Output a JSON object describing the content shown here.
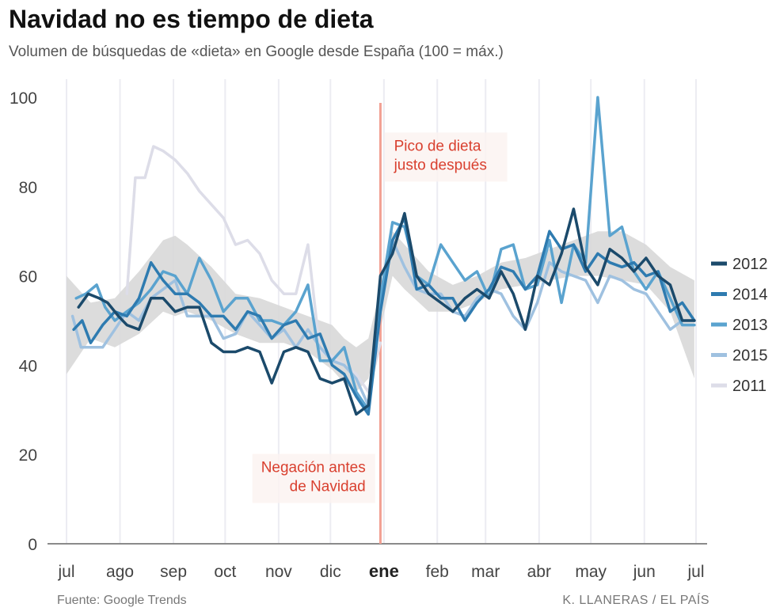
{
  "chart_data": {
    "type": "line",
    "title": "Navidad no es tiempo de dieta",
    "subtitle": "Volumen de búsquedas de «dieta» en Google desde España (100 = máx.)",
    "x_unit": "weeks from July 1 (0 = start of jul, 26 = ene, 52 = next jul)",
    "x_ticks": [
      {
        "x": 0,
        "label": "jul"
      },
      {
        "x": 4.43,
        "label": "ago"
      },
      {
        "x": 8.86,
        "label": "sep"
      },
      {
        "x": 13.14,
        "label": "oct"
      },
      {
        "x": 17.57,
        "label": "nov"
      },
      {
        "x": 21.86,
        "label": "dic"
      },
      {
        "x": 26.29,
        "label": "ene",
        "bold": true
      },
      {
        "x": 30.71,
        "label": "feb"
      },
      {
        "x": 34.71,
        "label": "mar"
      },
      {
        "x": 39.14,
        "label": "abr"
      },
      {
        "x": 43.43,
        "label": "may"
      },
      {
        "x": 47.86,
        "label": "jun"
      },
      {
        "x": 52.14,
        "label": "jul"
      }
    ],
    "y_ticks": [
      0,
      20,
      40,
      60,
      80,
      100
    ],
    "ylim": [
      0,
      100
    ],
    "xlim": [
      0,
      52.14
    ],
    "series": [
      {
        "name": "2011",
        "color": "#dddde8",
        "width": 3.5,
        "x": [
          5,
          5.7,
          6.5,
          7.2,
          8,
          9,
          10,
          11,
          12,
          13,
          14,
          15,
          16,
          17,
          18,
          19,
          20,
          21,
          22,
          23,
          24,
          25,
          26
        ],
        "y": [
          56,
          82,
          82,
          89,
          88,
          86,
          83,
          79,
          76,
          73,
          67,
          68,
          65,
          59,
          56,
          56,
          67,
          43,
          42,
          40,
          38,
          34,
          45
        ]
      },
      {
        "name": "2015",
        "color": "#9fc1e0",
        "width": 3.5,
        "x": [
          0.5,
          1.2,
          2,
          3,
          4,
          5,
          6,
          7,
          8,
          9,
          10,
          11,
          12,
          13,
          14,
          15,
          16,
          17,
          18,
          19,
          20,
          21,
          22,
          23,
          24,
          25,
          26,
          27,
          28,
          29,
          30,
          31,
          32,
          33,
          34,
          35,
          36,
          37,
          38,
          39,
          40,
          41,
          42,
          43,
          44,
          45,
          46,
          47,
          48,
          49,
          50,
          51,
          52
        ],
        "y": [
          51,
          44,
          44,
          44,
          48,
          52,
          50,
          55,
          57,
          59,
          51,
          51,
          51,
          46,
          47,
          52,
          49,
          46,
          48,
          44,
          48,
          44,
          41,
          40,
          37,
          31,
          56,
          68,
          62,
          57,
          56,
          56,
          52,
          51,
          55,
          57,
          56,
          51,
          48,
          54,
          63,
          61,
          60,
          59,
          54,
          60,
          59,
          57,
          56,
          52,
          48,
          50,
          50
        ]
      },
      {
        "name": "2013",
        "color": "#5aa3cf",
        "width": 3.5,
        "x": [
          0.8,
          1.6,
          2.5,
          3.2,
          4,
          5,
          6,
          7,
          8,
          9,
          10,
          11,
          12,
          13,
          14,
          15,
          16,
          17,
          18,
          19,
          20,
          21,
          22,
          23,
          24,
          25,
          26,
          27,
          28,
          29,
          30,
          31,
          32,
          33,
          34,
          35,
          36,
          37,
          38,
          39,
          40,
          41,
          42,
          43,
          44,
          45,
          46,
          47,
          48,
          49,
          50,
          51,
          52
        ],
        "y": [
          55,
          56,
          58,
          53,
          50,
          52,
          54,
          57,
          61,
          60,
          56,
          64,
          59,
          52,
          55,
          55,
          50,
          50,
          49,
          52,
          58,
          41,
          41,
          44,
          34,
          30,
          55,
          72,
          71,
          60,
          58,
          67,
          63,
          59,
          61,
          55,
          66,
          67,
          57,
          58,
          68,
          54,
          67,
          63,
          100,
          69,
          71,
          61,
          57,
          61,
          55,
          49,
          49
        ]
      },
      {
        "name": "2014",
        "color": "#2e7bb0",
        "width": 3.5,
        "x": [
          0.6,
          1.3,
          2,
          3,
          4,
          5,
          6,
          7,
          8,
          9,
          10,
          11,
          12,
          13,
          14,
          15,
          16,
          17,
          18,
          19,
          20,
          21,
          22,
          23,
          24,
          25,
          26,
          27,
          28,
          29,
          30,
          31,
          32,
          33,
          34,
          35,
          36,
          37,
          38,
          39,
          40,
          41,
          42,
          43,
          44,
          45,
          46,
          47,
          48,
          49,
          50,
          51,
          52
        ],
        "y": [
          48,
          50,
          45,
          49,
          52,
          51,
          55,
          63,
          59,
          56,
          56,
          54,
          51,
          51,
          48,
          52,
          51,
          46,
          49,
          50,
          46,
          47,
          40,
          38,
          33,
          29,
          52,
          68,
          73,
          57,
          58,
          55,
          55,
          50,
          54,
          57,
          62,
          61,
          57,
          60,
          70,
          66,
          67,
          61,
          65,
          63,
          62,
          63,
          60,
          61,
          52,
          54,
          50
        ]
      },
      {
        "name": "2012",
        "color": "#1b4a6b",
        "width": 3.5,
        "x": [
          1,
          1.8,
          2.7,
          3.4,
          4.3,
          5,
          6,
          7,
          8,
          9,
          10,
          11,
          12,
          13,
          14,
          15,
          16,
          17,
          18,
          19,
          20,
          21,
          22,
          23,
          24,
          25,
          26,
          27,
          28,
          29,
          30,
          31,
          32,
          33,
          34,
          35,
          36,
          37,
          38,
          39,
          40,
          41,
          42,
          43,
          44,
          45,
          46,
          47,
          48,
          49,
          50,
          51,
          52
        ],
        "y": [
          53,
          56,
          55,
          54,
          51,
          49,
          48,
          55,
          55,
          52,
          53,
          53,
          45,
          43,
          43,
          44,
          43,
          36,
          43,
          44,
          43,
          37,
          36,
          37,
          29,
          31,
          60,
          65,
          74,
          60,
          56,
          54,
          52,
          55,
          57,
          55,
          61,
          56,
          48,
          60,
          58,
          65,
          75,
          62,
          58,
          66,
          64,
          61,
          64,
          60,
          58,
          50,
          50
        ]
      }
    ],
    "band": {
      "color": "#d8d8d8",
      "label": "",
      "x": [
        0,
        2,
        4,
        6,
        8,
        9,
        10,
        12,
        14,
        16,
        18,
        20,
        21,
        22,
        23,
        24,
        25,
        26,
        27,
        28,
        30,
        32,
        34,
        36,
        38,
        40,
        42,
        44,
        46,
        48,
        50,
        52
      ],
      "upper": [
        60,
        54,
        55,
        61,
        68,
        69,
        67,
        62,
        56,
        55,
        53,
        51,
        50,
        49,
        46,
        44,
        46,
        57,
        70,
        67,
        61,
        58,
        60,
        63,
        64,
        66,
        68,
        70,
        70,
        67,
        62,
        59
      ],
      "lower": [
        38,
        46,
        44,
        47,
        52,
        51,
        52,
        50,
        47,
        45,
        45,
        43,
        41,
        39,
        36,
        34,
        37,
        48,
        60,
        57,
        52,
        52,
        54,
        57,
        58,
        59,
        60,
        60,
        59,
        58,
        52,
        37
      ]
    },
    "marker": {
      "x": 26.0,
      "color": "#f2a093"
    },
    "annotations": [
      {
        "text_lines": [
          "Pico de dieta",
          "justo después"
        ],
        "x": 26.6,
        "y": 90,
        "align": "left"
      },
      {
        "text_lines": [
          "Negación antes",
          "de Navidad"
        ],
        "x": 25.3,
        "y": 18,
        "align": "right"
      }
    ],
    "legend": {
      "placement": "right",
      "order": [
        "2012",
        "2014",
        "2013",
        "2015",
        "2011"
      ]
    },
    "grid": true
  },
  "footer": {
    "source": "Fuente: Google Trends",
    "credit": "K. LLANERAS  /  EL PAÍS"
  }
}
